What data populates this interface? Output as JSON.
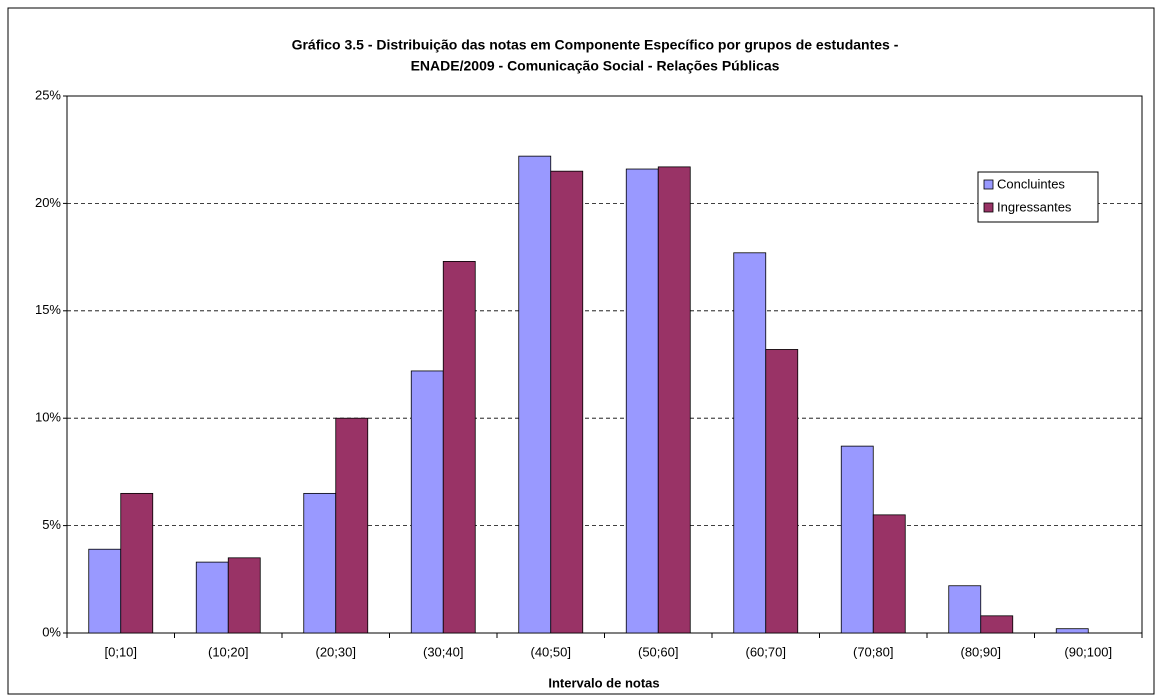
{
  "chart_data": {
    "type": "bar",
    "title": [
      "Gráfico 3.5 - Distribuição das notas em Componente Específico por grupos de estudantes -",
      "ENADE/2009 - Comunicação Social - Relações Públicas"
    ],
    "x_label": "Intervalo de notas",
    "categories": [
      "[0;10]",
      "(10;20]",
      "(20;30]",
      "(30;40]",
      "(40;50]",
      "(50;60]",
      "(60;70]",
      "(70;80]",
      "(80;90]",
      "(90;100]"
    ],
    "series": [
      {
        "name": "Concluintes",
        "color": "#9999ff",
        "values": [
          3.9,
          3.3,
          6.5,
          12.2,
          22.2,
          21.6,
          17.7,
          8.7,
          2.2,
          0.2
        ]
      },
      {
        "name": "Ingressantes",
        "color": "#993366",
        "values": [
          6.5,
          3.5,
          10.0,
          17.3,
          21.5,
          21.7,
          13.2,
          5.5,
          0.8,
          0
        ]
      }
    ],
    "ylim": [
      0,
      25
    ],
    "yticks": [
      {
        "value": 0,
        "label": "0%"
      },
      {
        "value": 5,
        "label": "5%"
      },
      {
        "value": 10,
        "label": "10%"
      },
      {
        "value": 15,
        "label": "15%"
      },
      {
        "value": 20,
        "label": "20%"
      },
      {
        "value": 25,
        "label": "25%"
      }
    ],
    "grid": true,
    "legend": "right"
  }
}
